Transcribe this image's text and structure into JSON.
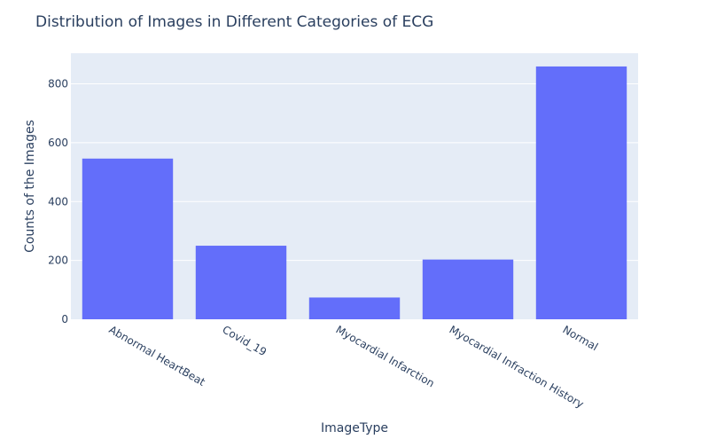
{
  "chart_data": {
    "type": "bar",
    "title": "Distribution of Images in Different Categories of ECG",
    "xlabel": "ImageType",
    "ylabel": "Counts of the Images",
    "categories": [
      "Abnormal HeartBeat",
      "Covid_19",
      "Myocardial Infarction",
      "Myocardial Infraction History",
      "Normal"
    ],
    "values": [
      546,
      250,
      74,
      203,
      859
    ],
    "ylim": [
      0,
      904
    ],
    "yticks": [
      0,
      200,
      400,
      600,
      800
    ],
    "grid": true,
    "colors": {
      "bar": "#636efa",
      "plot_bg": "#e5ecf6",
      "grid": "#ffffff",
      "text": "#2a3f5f"
    }
  }
}
